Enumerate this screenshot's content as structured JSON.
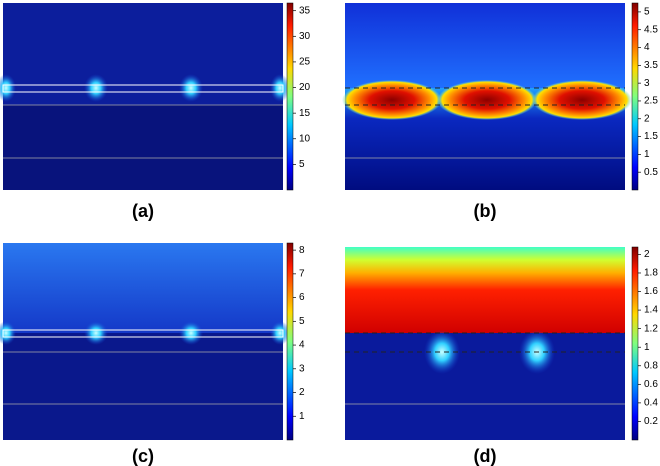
{
  "panels": [
    {
      "label": "(a)",
      "colorbar": {
        "range": [
          0,
          36.5
        ],
        "ticks": [
          5,
          10,
          15,
          20,
          25,
          30,
          35
        ]
      }
    },
    {
      "label": "(b)",
      "colorbar": {
        "range": [
          0,
          5.25
        ],
        "ticks": [
          0.5,
          1,
          1.5,
          2,
          2.5,
          3,
          3.5,
          4,
          4.5,
          5
        ]
      }
    },
    {
      "label": "(c)",
      "colorbar": {
        "range": [
          0,
          8.3
        ],
        "ticks": [
          1,
          2,
          3,
          4,
          5,
          6,
          7,
          8
        ]
      }
    },
    {
      "label": "(d)",
      "colorbar": {
        "range": [
          0,
          2.08
        ],
        "ticks": [
          0.2,
          0.4,
          0.6,
          0.8,
          1,
          1.2,
          1.4,
          1.6,
          1.8,
          2
        ]
      }
    }
  ]
}
